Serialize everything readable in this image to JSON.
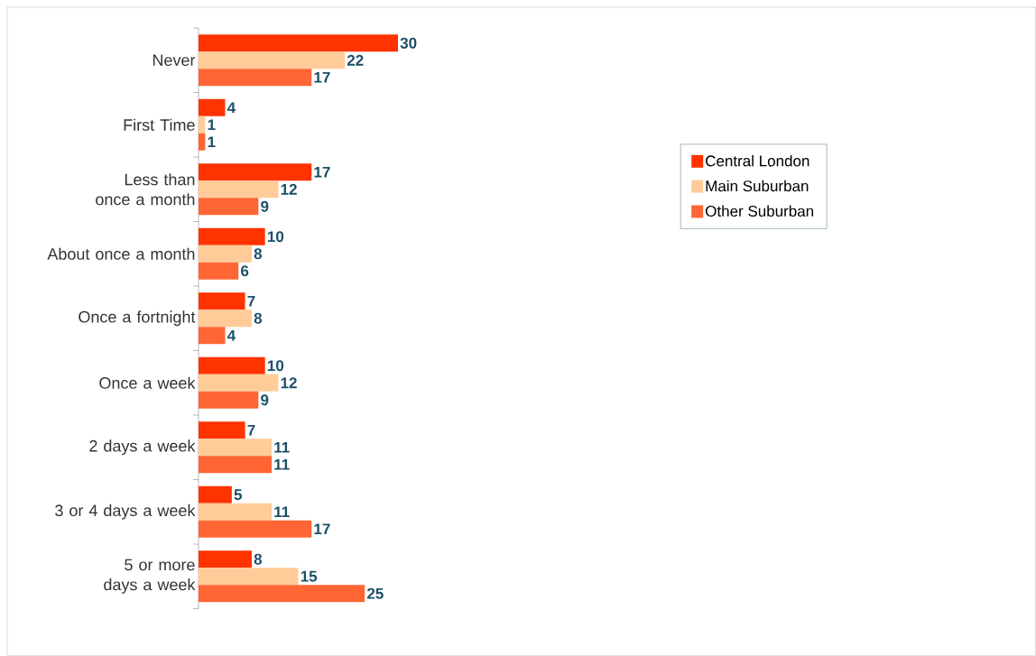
{
  "chart_data": {
    "type": "bar",
    "orientation": "horizontal",
    "data_labels": true,
    "legend": "right",
    "categories": [
      "Never",
      "First Time",
      "Less than once a month",
      "About once a month",
      "Once a fortnight",
      "Once a week",
      "2 days a week",
      "3 or 4 days a week",
      "5 or more days a week"
    ],
    "series": [
      {
        "name": "Central London",
        "color": "#ff3300",
        "values": [
          30,
          4,
          17,
          10,
          7,
          10,
          7,
          5,
          8
        ]
      },
      {
        "name": "Main Suburban",
        "color": "#ffcc99",
        "values": [
          22,
          1,
          12,
          8,
          8,
          12,
          11,
          11,
          15
        ]
      },
      {
        "name": "Other Suburban",
        "color": "#ff6633",
        "values": [
          17,
          1,
          9,
          6,
          4,
          9,
          11,
          17,
          25
        ]
      }
    ]
  }
}
